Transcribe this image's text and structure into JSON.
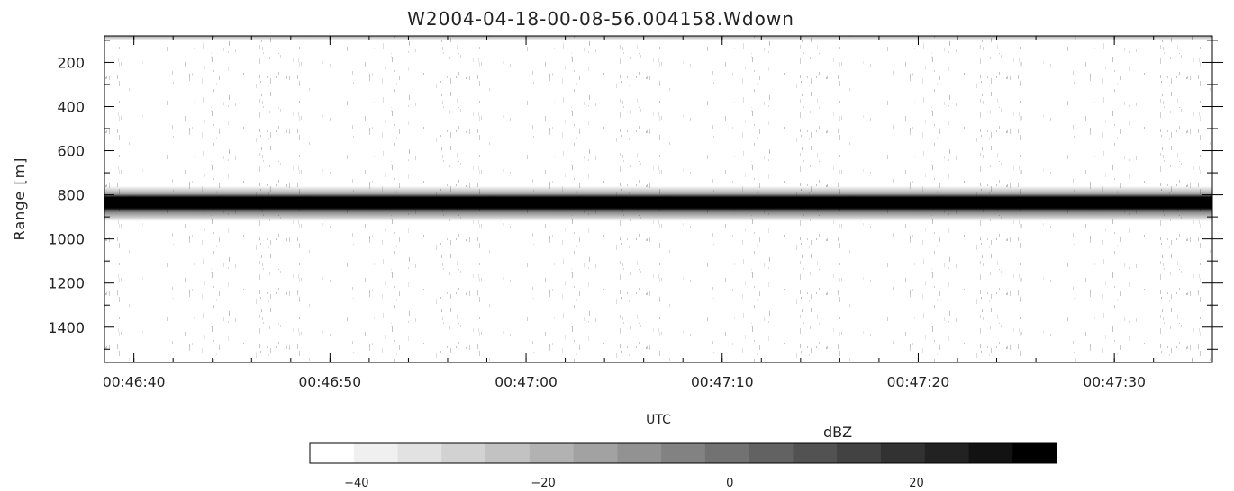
{
  "chart_data": {
    "type": "heatmap",
    "title": "W2004-04-18-00-08-56.004158.Wdown",
    "xlabel": "UTC",
    "ylabel": "Range [m]",
    "x_axis": {
      "min": "00:46:38.5",
      "max": "00:47:35.0",
      "tick_labels": [
        "00:46:40",
        "00:46:50",
        "00:47:00",
        "00:47:10",
        "00:47:20",
        "00:47:30"
      ],
      "minor_tick_interval_s": 2
    },
    "y_axis": {
      "min": 80,
      "max": 1560,
      "reversed": true,
      "tick_values": [
        200,
        400,
        600,
        800,
        1000,
        1200,
        1400
      ],
      "minor_tick_interval": 100
    },
    "colorbar": {
      "label": "dBZ",
      "min": -45,
      "max": 35,
      "tick_values": [
        -40,
        -20,
        0,
        20
      ],
      "colors": [
        "#ffffff",
        "#f0f0f0",
        "#e2e2e2",
        "#d2d2d2",
        "#c2c2c2",
        "#b2b2b2",
        "#a2a2a2",
        "#929292",
        "#828282",
        "#727272",
        "#626262",
        "#525252",
        "#424242",
        "#323232",
        "#222222",
        "#121212",
        "#000000"
      ]
    },
    "features": {
      "top_band_range_m": [
        80,
        100
      ],
      "strong_echo_layer_m": {
        "center": 830,
        "half_width": 45,
        "peak_dBZ": 33
      },
      "echo_halo_m": [
        760,
        920
      ],
      "background_speckle": "sparse light gray vertical streaks (approx -40 to -20 dBZ)"
    },
    "grid": false
  }
}
